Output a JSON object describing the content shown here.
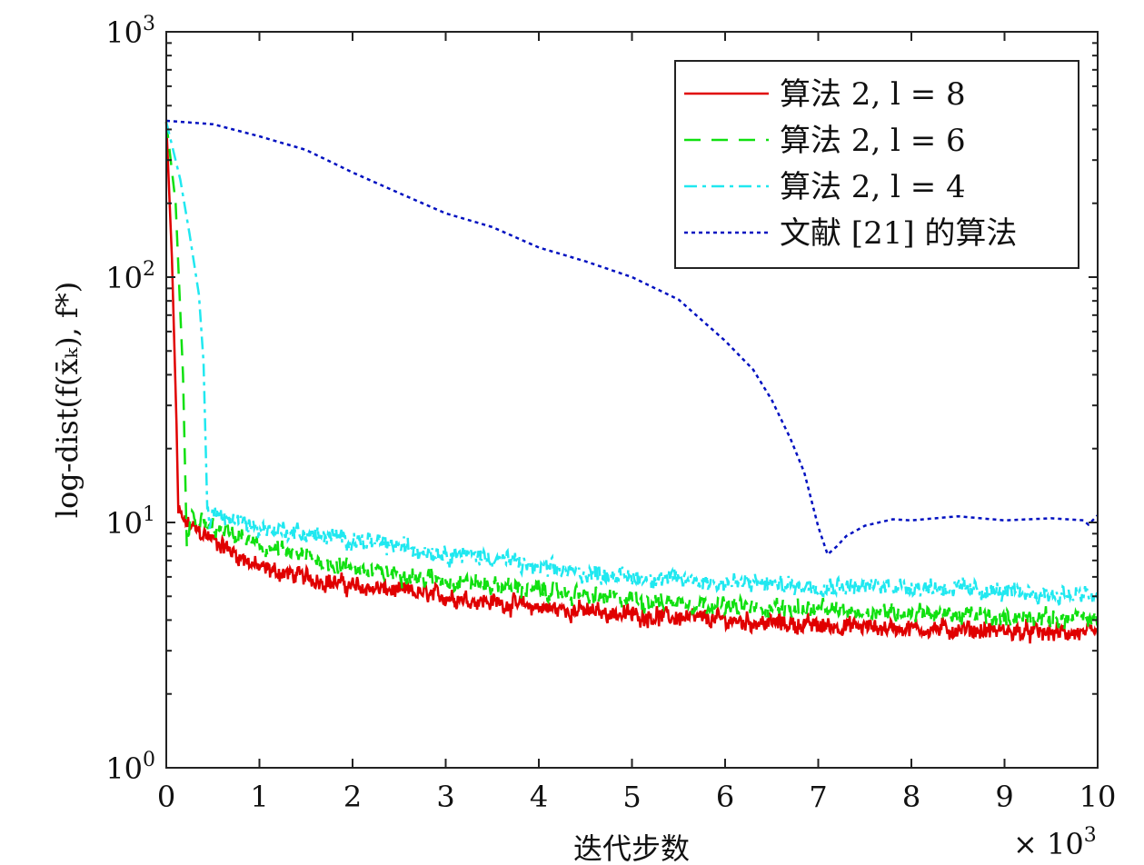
{
  "chart_data": {
    "type": "line",
    "title": "",
    "xlabel": "迭代步数",
    "x_multiplier": "× 10",
    "x_multiplier_exp": "3",
    "ylabel": "log-dist(f(x̄ₖ), f*)",
    "xlim": [
      0,
      10000
    ],
    "ylim": [
      1,
      1000
    ],
    "yscale": "log",
    "grid": false,
    "legend_position": "top-right",
    "x_ticks": [
      0,
      1000,
      2000,
      3000,
      4000,
      5000,
      6000,
      7000,
      8000,
      9000,
      10000
    ],
    "x_tick_labels": [
      "0",
      "1",
      "2",
      "3",
      "4",
      "5",
      "6",
      "7",
      "8",
      "9",
      "10"
    ],
    "y_ticks": [
      1,
      10,
      100,
      1000
    ],
    "y_tick_labels": [
      {
        "base": "10",
        "exp": "0"
      },
      {
        "base": "10",
        "exp": "1"
      },
      {
        "base": "10",
        "exp": "2"
      },
      {
        "base": "10",
        "exp": "3"
      }
    ],
    "series": [
      {
        "name": "算法 2, l = 8",
        "color": "#e00000",
        "style": "solid",
        "noisy": true,
        "points": [
          [
            0,
            430
          ],
          [
            60,
            120
          ],
          [
            110,
            25
          ],
          [
            130,
            11
          ],
          [
            200,
            10
          ],
          [
            500,
            8.5
          ],
          [
            1000,
            6.5
          ],
          [
            2000,
            5.5
          ],
          [
            3000,
            5.0
          ],
          [
            4000,
            4.5
          ],
          [
            5000,
            4.2
          ],
          [
            6000,
            4.0
          ],
          [
            7000,
            3.8
          ],
          [
            8000,
            3.7
          ],
          [
            9000,
            3.6
          ],
          [
            10000,
            3.5
          ]
        ]
      },
      {
        "name": "算法 2, l = 6",
        "color": "#10e010",
        "style": "dashed",
        "noisy": true,
        "points": [
          [
            0,
            430
          ],
          [
            100,
            200
          ],
          [
            180,
            40
          ],
          [
            220,
            8
          ],
          [
            260,
            10.5
          ],
          [
            500,
            9.5
          ],
          [
            1000,
            8
          ],
          [
            2000,
            6.5
          ],
          [
            3000,
            5.8
          ],
          [
            4000,
            5.3
          ],
          [
            5000,
            4.8
          ],
          [
            6000,
            4.6
          ],
          [
            7000,
            4.4
          ],
          [
            8000,
            4.3
          ],
          [
            9000,
            4.1
          ],
          [
            10000,
            4.0
          ]
        ]
      },
      {
        "name": "算法 2, l = 4",
        "color": "#20e8f0",
        "style": "dashdot",
        "noisy": true,
        "points": [
          [
            0,
            430
          ],
          [
            150,
            250
          ],
          [
            250,
            150
          ],
          [
            350,
            85
          ],
          [
            400,
            45
          ],
          [
            440,
            12
          ],
          [
            460,
            10
          ],
          [
            500,
            11
          ],
          [
            1000,
            9.5
          ],
          [
            2000,
            8.5
          ],
          [
            3000,
            7.5
          ],
          [
            3500,
            7.2
          ],
          [
            4000,
            6.5
          ],
          [
            5000,
            6.0
          ],
          [
            6000,
            5.7
          ],
          [
            7000,
            5.5
          ],
          [
            8000,
            5.5
          ],
          [
            9000,
            5.2
          ],
          [
            10000,
            5.0
          ]
        ]
      },
      {
        "name": "文献 [21] 的算法",
        "color": "#0010c0",
        "style": "dotted",
        "noisy": false,
        "points": [
          [
            0,
            434
          ],
          [
            500,
            420
          ],
          [
            1000,
            375
          ],
          [
            1500,
            330
          ],
          [
            2000,
            267
          ],
          [
            2500,
            220
          ],
          [
            3000,
            182
          ],
          [
            3500,
            160
          ],
          [
            4000,
            132
          ],
          [
            4500,
            116
          ],
          [
            5000,
            100
          ],
          [
            5500,
            81
          ],
          [
            6000,
            55
          ],
          [
            6300,
            42
          ],
          [
            6500,
            31.6
          ],
          [
            6700,
            22
          ],
          [
            6850,
            16
          ],
          [
            7000,
            9.6
          ],
          [
            7100,
            7.4
          ],
          [
            7200,
            8
          ],
          [
            7300,
            8.8
          ],
          [
            7500,
            9.7
          ],
          [
            7800,
            10.3
          ],
          [
            8000,
            10.2
          ],
          [
            8500,
            10.6
          ],
          [
            9000,
            10.2
          ],
          [
            9500,
            10.4
          ],
          [
            9850,
            10.2
          ],
          [
            9900,
            9.8
          ],
          [
            10000,
            10.7
          ]
        ]
      }
    ]
  }
}
